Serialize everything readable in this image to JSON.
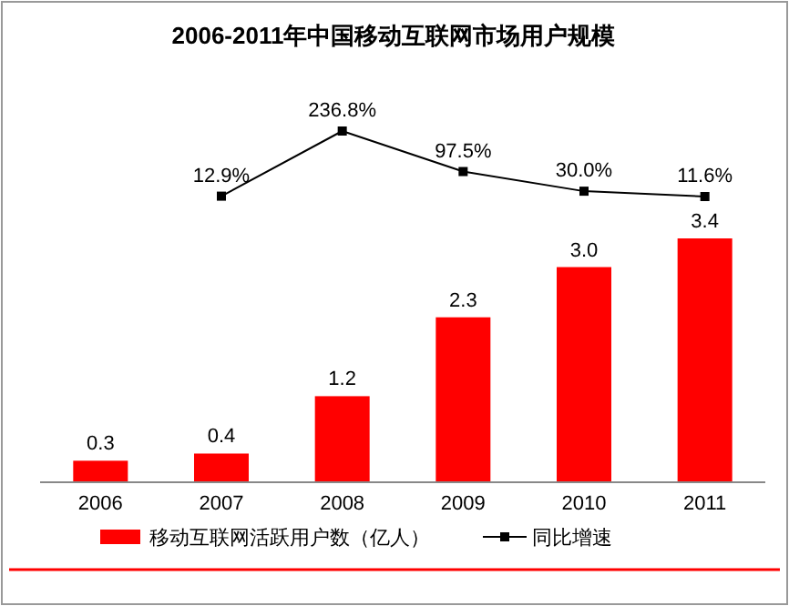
{
  "chart_data": [
    {
      "type": "bar",
      "categories": [
        "2006",
        "2007",
        "2008",
        "2009",
        "2010",
        "2011"
      ],
      "legend": "bottom",
      "series": [
        {
          "name": "移动互联网活跃用户数（亿人）",
          "color": "#ff0000",
          "values": [
            0.3,
            0.4,
            1.2,
            2.3,
            3.0,
            3.4
          ],
          "value_labels": [
            "0.3",
            "0.4",
            "1.2",
            "2.3",
            "3.0",
            "3.4"
          ]
        }
      ]
    },
    {
      "type": "line",
      "title": "2006-2011年中国移动互联网市场用户规模",
      "categories": [
        null,
        null,
        null,
        null,
        null,
        null
      ],
      "legend": "bottom",
      "marker": "square",
      "series": [
        {
          "name": "同比增速",
          "color": "#000000",
          "values": [
            null,
            12.9,
            236.8,
            97.5,
            30.0,
            11.6
          ],
          "value_labels": [
            null,
            "12.9%",
            "236.8%",
            "97.5%",
            "30.0%",
            "11.6%"
          ]
        }
      ]
    }
  ]
}
